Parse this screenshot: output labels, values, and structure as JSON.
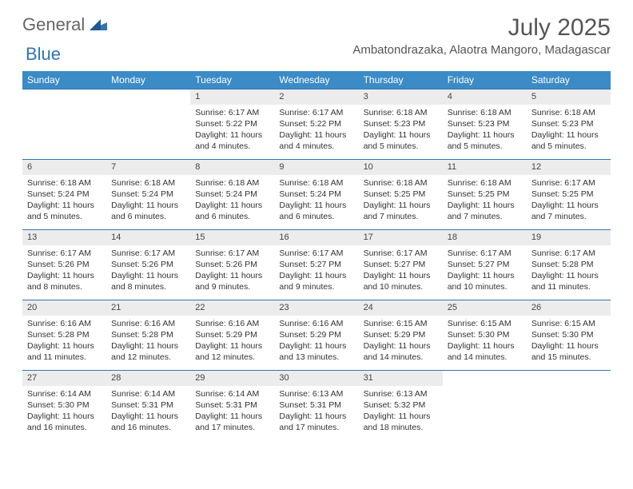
{
  "logo": {
    "text1": "General",
    "text2": "Blue"
  },
  "title": "July 2025",
  "location": "Ambatondrazaka, Alaotra Mangoro, Madagascar",
  "colors": {
    "header_bg": "#3b8bc6",
    "header_text": "#ffffff",
    "rule": "#2e75b6",
    "daynum_bg": "#ececec",
    "text": "#333333",
    "logo_blue": "#2e75b6"
  },
  "daysOfWeek": [
    "Sunday",
    "Monday",
    "Tuesday",
    "Wednesday",
    "Thursday",
    "Friday",
    "Saturday"
  ],
  "weeks": [
    [
      {
        "empty": true
      },
      {
        "empty": true
      },
      {
        "num": "1",
        "sunrise": "6:17 AM",
        "sunset": "5:22 PM",
        "daylight": "11 hours and 4 minutes."
      },
      {
        "num": "2",
        "sunrise": "6:17 AM",
        "sunset": "5:22 PM",
        "daylight": "11 hours and 4 minutes."
      },
      {
        "num": "3",
        "sunrise": "6:18 AM",
        "sunset": "5:23 PM",
        "daylight": "11 hours and 5 minutes."
      },
      {
        "num": "4",
        "sunrise": "6:18 AM",
        "sunset": "5:23 PM",
        "daylight": "11 hours and 5 minutes."
      },
      {
        "num": "5",
        "sunrise": "6:18 AM",
        "sunset": "5:23 PM",
        "daylight": "11 hours and 5 minutes."
      }
    ],
    [
      {
        "num": "6",
        "sunrise": "6:18 AM",
        "sunset": "5:24 PM",
        "daylight": "11 hours and 5 minutes."
      },
      {
        "num": "7",
        "sunrise": "6:18 AM",
        "sunset": "5:24 PM",
        "daylight": "11 hours and 6 minutes."
      },
      {
        "num": "8",
        "sunrise": "6:18 AM",
        "sunset": "5:24 PM",
        "daylight": "11 hours and 6 minutes."
      },
      {
        "num": "9",
        "sunrise": "6:18 AM",
        "sunset": "5:24 PM",
        "daylight": "11 hours and 6 minutes."
      },
      {
        "num": "10",
        "sunrise": "6:18 AM",
        "sunset": "5:25 PM",
        "daylight": "11 hours and 7 minutes."
      },
      {
        "num": "11",
        "sunrise": "6:18 AM",
        "sunset": "5:25 PM",
        "daylight": "11 hours and 7 minutes."
      },
      {
        "num": "12",
        "sunrise": "6:17 AM",
        "sunset": "5:25 PM",
        "daylight": "11 hours and 7 minutes."
      }
    ],
    [
      {
        "num": "13",
        "sunrise": "6:17 AM",
        "sunset": "5:26 PM",
        "daylight": "11 hours and 8 minutes."
      },
      {
        "num": "14",
        "sunrise": "6:17 AM",
        "sunset": "5:26 PM",
        "daylight": "11 hours and 8 minutes."
      },
      {
        "num": "15",
        "sunrise": "6:17 AM",
        "sunset": "5:26 PM",
        "daylight": "11 hours and 9 minutes."
      },
      {
        "num": "16",
        "sunrise": "6:17 AM",
        "sunset": "5:27 PM",
        "daylight": "11 hours and 9 minutes."
      },
      {
        "num": "17",
        "sunrise": "6:17 AM",
        "sunset": "5:27 PM",
        "daylight": "11 hours and 10 minutes."
      },
      {
        "num": "18",
        "sunrise": "6:17 AM",
        "sunset": "5:27 PM",
        "daylight": "11 hours and 10 minutes."
      },
      {
        "num": "19",
        "sunrise": "6:17 AM",
        "sunset": "5:28 PM",
        "daylight": "11 hours and 11 minutes."
      }
    ],
    [
      {
        "num": "20",
        "sunrise": "6:16 AM",
        "sunset": "5:28 PM",
        "daylight": "11 hours and 11 minutes."
      },
      {
        "num": "21",
        "sunrise": "6:16 AM",
        "sunset": "5:28 PM",
        "daylight": "11 hours and 12 minutes."
      },
      {
        "num": "22",
        "sunrise": "6:16 AM",
        "sunset": "5:29 PM",
        "daylight": "11 hours and 12 minutes."
      },
      {
        "num": "23",
        "sunrise": "6:16 AM",
        "sunset": "5:29 PM",
        "daylight": "11 hours and 13 minutes."
      },
      {
        "num": "24",
        "sunrise": "6:15 AM",
        "sunset": "5:29 PM",
        "daylight": "11 hours and 14 minutes."
      },
      {
        "num": "25",
        "sunrise": "6:15 AM",
        "sunset": "5:30 PM",
        "daylight": "11 hours and 14 minutes."
      },
      {
        "num": "26",
        "sunrise": "6:15 AM",
        "sunset": "5:30 PM",
        "daylight": "11 hours and 15 minutes."
      }
    ],
    [
      {
        "num": "27",
        "sunrise": "6:14 AM",
        "sunset": "5:30 PM",
        "daylight": "11 hours and 16 minutes."
      },
      {
        "num": "28",
        "sunrise": "6:14 AM",
        "sunset": "5:31 PM",
        "daylight": "11 hours and 16 minutes."
      },
      {
        "num": "29",
        "sunrise": "6:14 AM",
        "sunset": "5:31 PM",
        "daylight": "11 hours and 17 minutes."
      },
      {
        "num": "30",
        "sunrise": "6:13 AM",
        "sunset": "5:31 PM",
        "daylight": "11 hours and 17 minutes."
      },
      {
        "num": "31",
        "sunrise": "6:13 AM",
        "sunset": "5:32 PM",
        "daylight": "11 hours and 18 minutes."
      },
      {
        "empty": true
      },
      {
        "empty": true
      }
    ]
  ],
  "labels": {
    "sunrise": "Sunrise:",
    "sunset": "Sunset:",
    "daylight": "Daylight:"
  }
}
